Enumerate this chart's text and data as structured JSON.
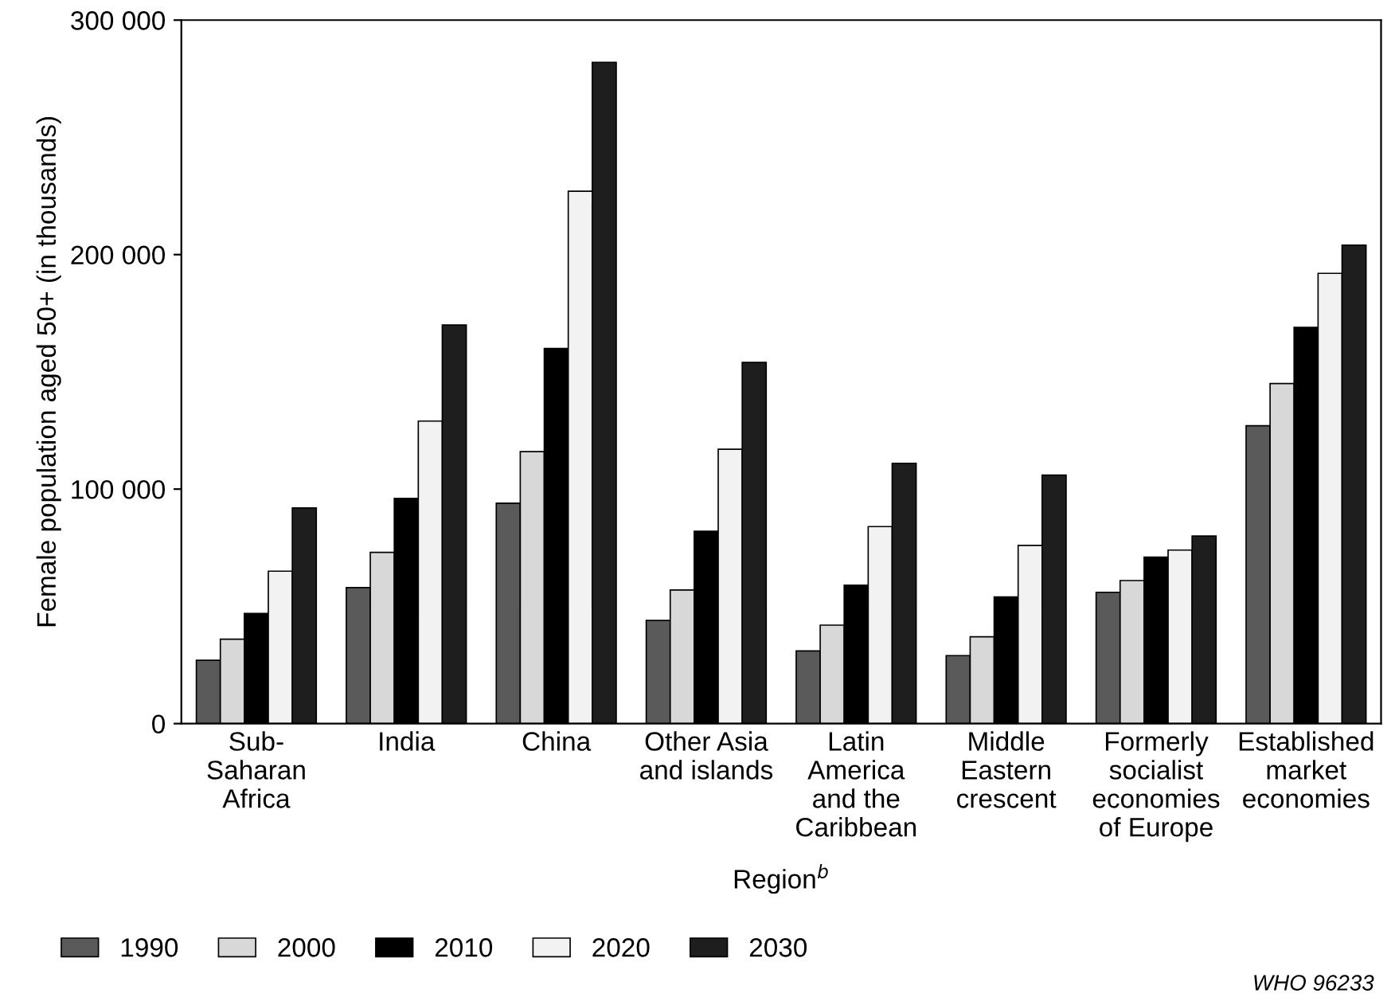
{
  "chart_data": {
    "type": "bar",
    "ylabel": "Female population aged 50+ (in thousands)",
    "xlabel": "Region$^{b}$",
    "categories": [
      "Sub-\nSaharan\nAfrica",
      "India",
      "China",
      "Other Asia\nand islands",
      "Latin\nAmerica\nand the\nCaribbean",
      "Middle\nEastern\ncrescent",
      "Formerly\nsocialist\neconomies\nof Europe",
      "Established\nmarket\neconomies"
    ],
    "series": [
      {
        "name": "1990",
        "color": "#5a5a5a",
        "values": [
          27000,
          58000,
          94000,
          44000,
          31000,
          29000,
          56000,
          127000
        ]
      },
      {
        "name": "2000",
        "color": "#d8d8d8",
        "values": [
          36000,
          73000,
          116000,
          57000,
          42000,
          37000,
          61000,
          145000
        ]
      },
      {
        "name": "2010",
        "color": "#000000",
        "values": [
          47000,
          96000,
          160000,
          82000,
          59000,
          54000,
          71000,
          169000
        ]
      },
      {
        "name": "2020",
        "color": "#f2f2f2",
        "values": [
          65000,
          129000,
          227000,
          117000,
          84000,
          76000,
          74000,
          192000
        ]
      },
      {
        "name": "2030",
        "color": "#1e1e1e",
        "values": [
          92000,
          170000,
          282000,
          154000,
          111000,
          106000,
          80000,
          204000
        ]
      }
    ],
    "ylim": [
      0,
      300000
    ],
    "yticks": [
      0,
      {
        "value": 100000,
        "label": "100 000"
      },
      {
        "value": 200000,
        "label": "200 000"
      },
      {
        "value": 300000,
        "label": "300 000"
      }
    ],
    "grid": false,
    "legend": "bottom",
    "annotations": [
      "WHO 96233"
    ]
  }
}
